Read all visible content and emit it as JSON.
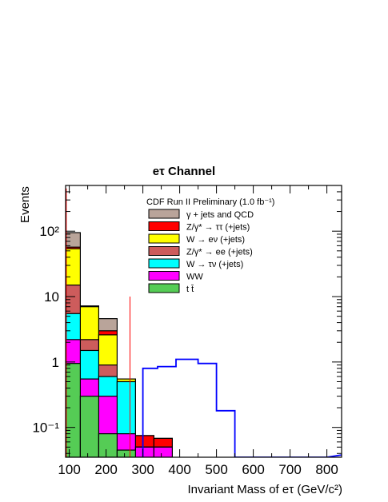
{
  "chart_data": {
    "type": "bar",
    "title": "eτ Channel",
    "xlabel": "Invariant Mass of eτ (GeV/c²)",
    "ylabel": "Events",
    "xlim": [
      90,
      840
    ],
    "ylim": [
      0.035,
      500
    ],
    "yscale": "log",
    "x_ticks": [
      100,
      200,
      300,
      400,
      500,
      600,
      700,
      800
    ],
    "y_ticks": [
      {
        "value": 0.1,
        "label": "10⁻¹"
      },
      {
        "value": 1,
        "label": "1"
      },
      {
        "value": 10,
        "label": "10"
      },
      {
        "value": 100,
        "label": "10²"
      }
    ],
    "bin_edges": [
      90,
      130,
      180,
      230,
      280,
      330,
      380
    ],
    "legend_header": "CDF Run II Preliminary (1.0 fb⁻¹)",
    "legend_position": "top-center",
    "stack_series": [
      {
        "name": "γ + jets and QCD",
        "color": "#b9a49a",
        "values": [
          95,
          7.2,
          4.6,
          0.55,
          0.075,
          0.068
        ]
      },
      {
        "name": "Z/γ* → ττ (+jets)",
        "color": "#ff0000",
        "values": [
          57,
          7.0,
          3.0,
          0.55,
          0.075,
          0.068
        ]
      },
      {
        "name": "W → eν (+jets)",
        "color": "#ffff00",
        "values": [
          54,
          7.0,
          2.6,
          0.55,
          0.05,
          0.05
        ]
      },
      {
        "name": "Z/γ* → ee (+jets)",
        "color": "#cd5c5c",
        "values": [
          15,
          2.2,
          0.9,
          0.5,
          0.05,
          0.05
        ]
      },
      {
        "name": "W → τν (+jets)",
        "color": "#00ffff",
        "values": [
          5.5,
          1.5,
          0.6,
          0.5,
          0.05,
          0.05
        ]
      },
      {
        "name": "WW",
        "color": "#ff00ff",
        "values": [
          2.2,
          0.55,
          0.3,
          0.08,
          0.05,
          0.05
        ]
      },
      {
        "name": "t t̄",
        "color": "#55cc55",
        "values": [
          0.95,
          0.3,
          0.08,
          0.045,
          0.035,
          0.035
        ]
      }
    ],
    "leftmost_spike": {
      "x_range": [
        90,
        93
      ],
      "value": 450,
      "color": "#ff0000"
    },
    "signal_line": {
      "color": "#0000ff",
      "x": [
        300,
        340,
        360,
        390,
        420,
        450,
        500,
        550
      ],
      "y": [
        0.8,
        0.85,
        0.85,
        1.1,
        1.1,
        0.95,
        0.18,
        0.18
      ],
      "tail_x": [
        550,
        800,
        840
      ],
      "tail_y": [
        0.03,
        0.03,
        0.038
      ]
    },
    "vertical_marker": {
      "x": 265,
      "y_top": 10,
      "color": "#ff0000"
    }
  }
}
